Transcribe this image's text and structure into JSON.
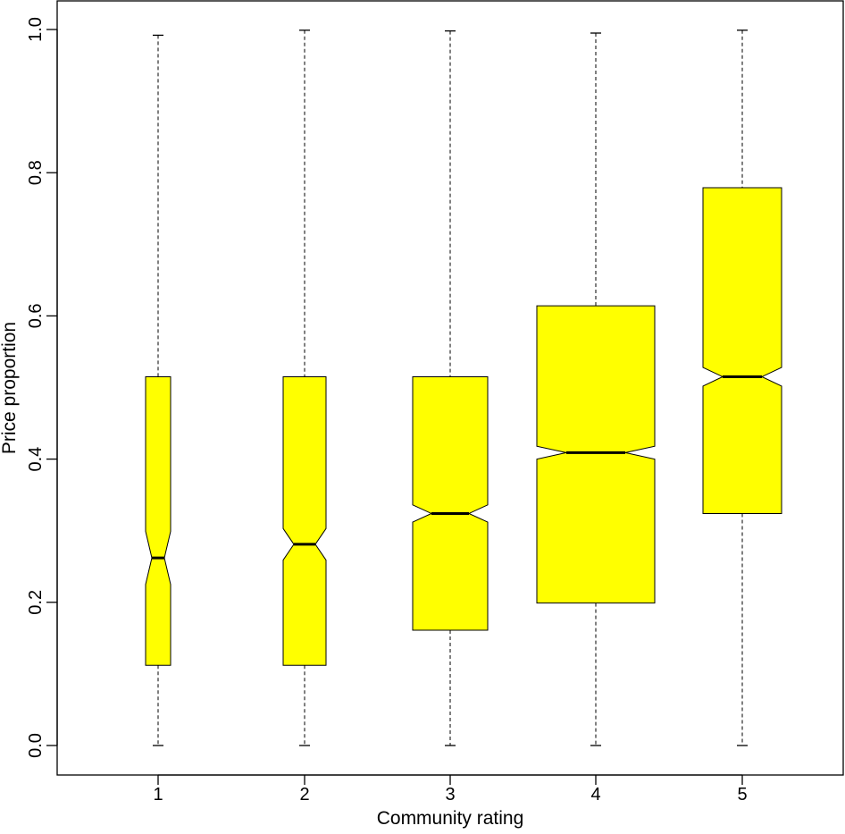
{
  "chart_data": {
    "type": "boxplot",
    "notched": true,
    "xlabel": "Community rating",
    "ylabel": "Price proportion",
    "categories": [
      "1",
      "2",
      "3",
      "4",
      "5"
    ],
    "y_ticks": [
      "0.0",
      "0.2",
      "0.4",
      "0.6",
      "0.8",
      "1.0"
    ],
    "ylim": [
      0.0,
      1.0
    ],
    "box_color": "#ffff00",
    "boxes": [
      {
        "category": "1",
        "whisker_low": 0.0,
        "q1": 0.112,
        "median": 0.262,
        "q3": 0.515,
        "whisker_high": 0.992,
        "notch_low": 0.225,
        "notch_high": 0.299
      },
      {
        "category": "2",
        "whisker_low": 0.0,
        "q1": 0.112,
        "median": 0.281,
        "q3": 0.515,
        "whisker_high": 0.999,
        "notch_low": 0.259,
        "notch_high": 0.303
      },
      {
        "category": "3",
        "whisker_low": 0.0,
        "q1": 0.161,
        "median": 0.324,
        "q3": 0.515,
        "whisker_high": 0.998,
        "notch_low": 0.312,
        "notch_high": 0.336
      },
      {
        "category": "4",
        "whisker_low": 0.0,
        "q1": 0.199,
        "median": 0.409,
        "q3": 0.614,
        "whisker_high": 0.995,
        "notch_low": 0.4,
        "notch_high": 0.418
      },
      {
        "category": "5",
        "whisker_low": 0.0,
        "q1": 0.324,
        "median": 0.515,
        "q3": 0.779,
        "whisker_high": 0.999,
        "notch_low": 0.502,
        "notch_high": 0.528
      }
    ]
  }
}
